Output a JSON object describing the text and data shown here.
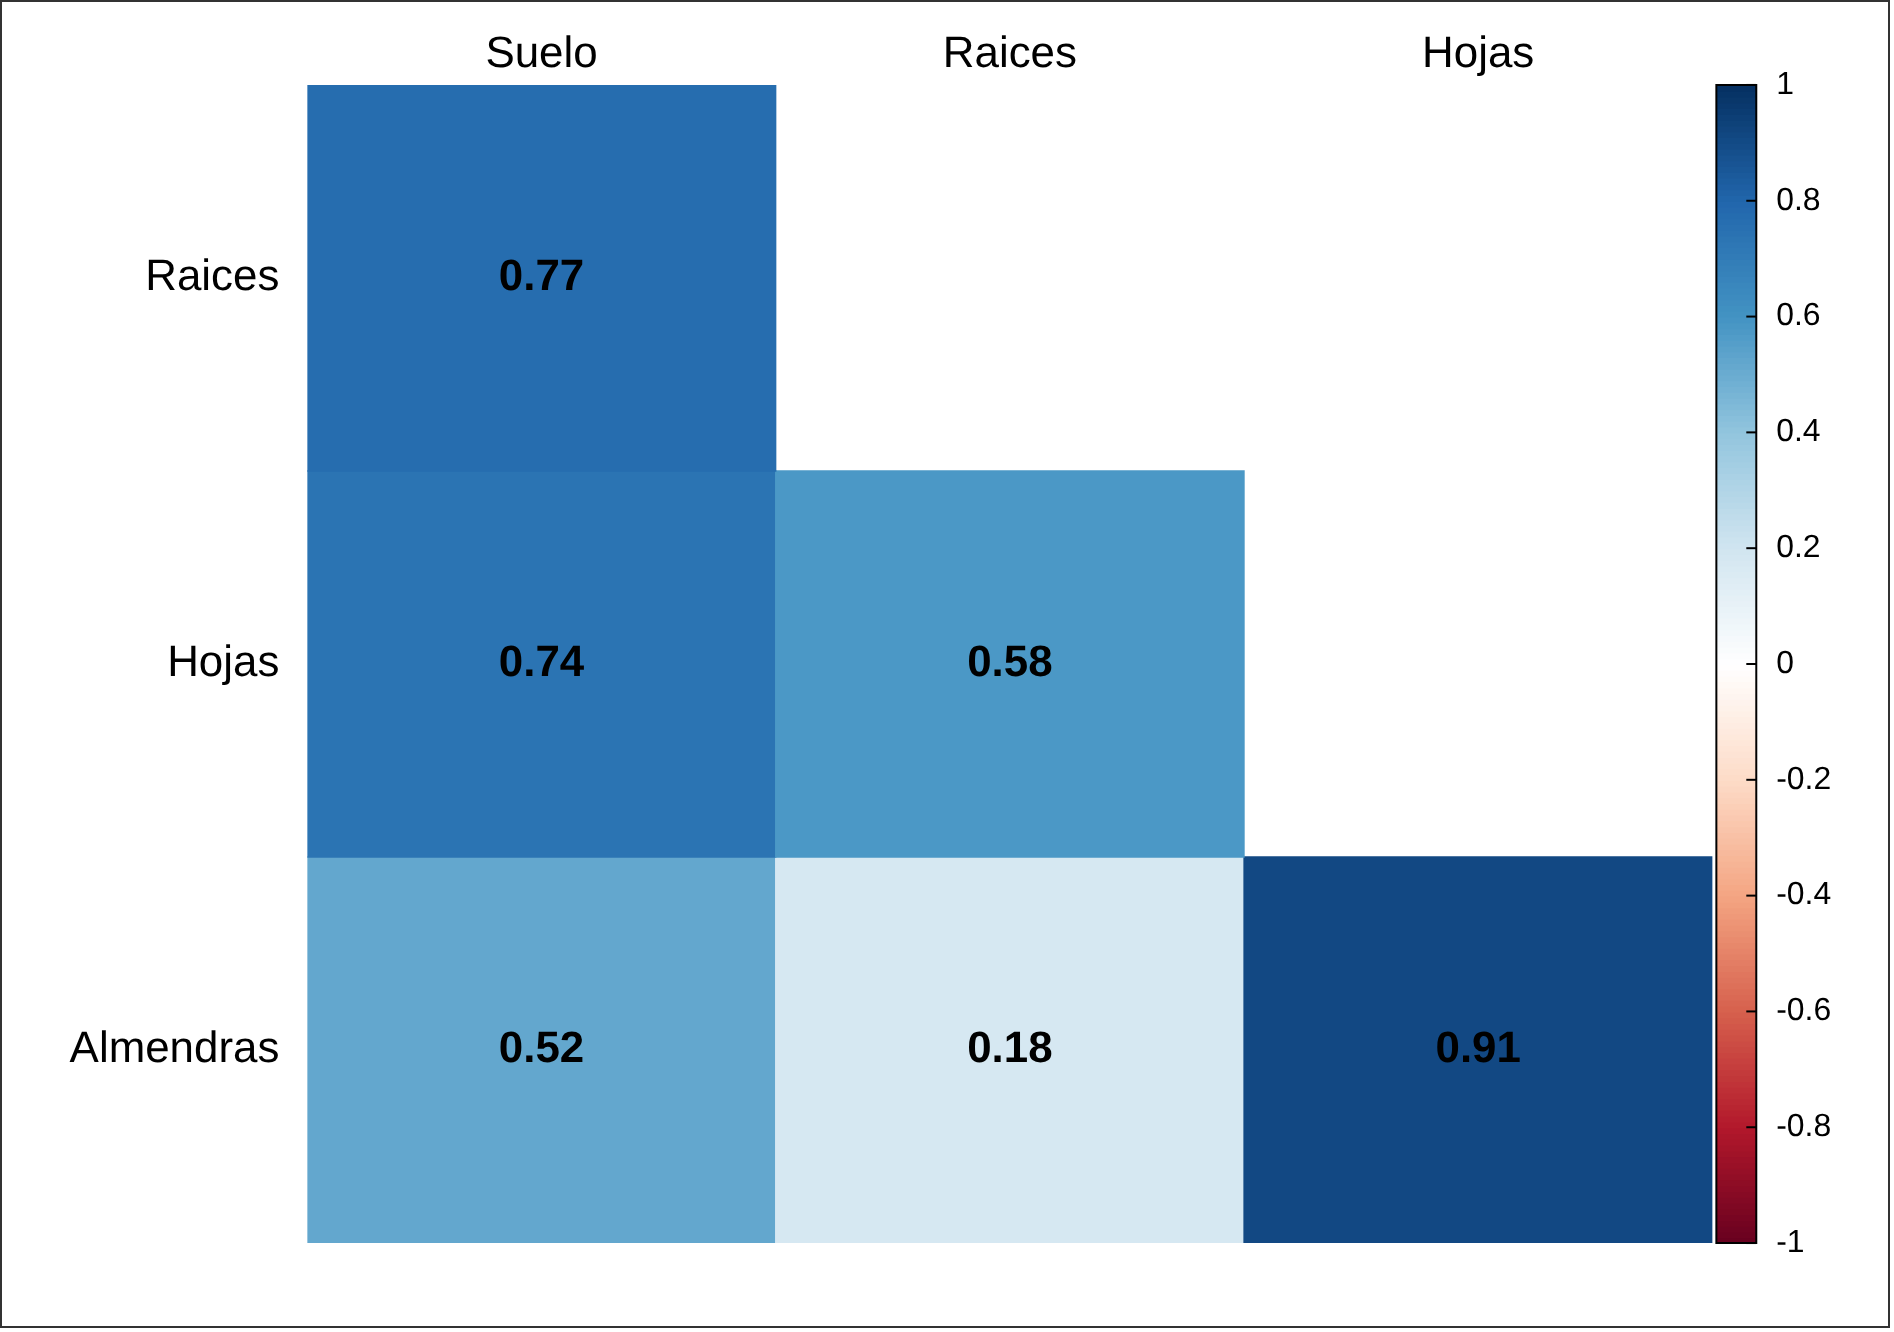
{
  "chart_data": {
    "type": "heatmap",
    "categories": [
      "Suelo",
      "Raices",
      "Hojas"
    ],
    "y_categories": [
      "Raices",
      "Hojas",
      "Almendras"
    ],
    "cells": [
      [
        0.77,
        null,
        null
      ],
      [
        0.74,
        0.58,
        null
      ],
      [
        0.52,
        0.18,
        0.91
      ]
    ],
    "clim": [
      -1,
      1
    ],
    "cticks": [
      -1,
      -0.8,
      -0.6,
      -0.4,
      -0.2,
      0,
      0.2,
      0.4,
      0.6,
      0.8,
      1
    ],
    "data_labels": true
  }
}
